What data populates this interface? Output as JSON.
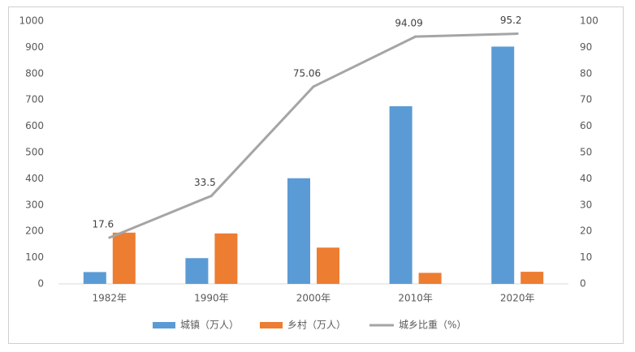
{
  "chart_data": {
    "type": "bar+line",
    "categories": [
      "1982年",
      "1990年",
      "2000年",
      "2010年",
      "2020年"
    ],
    "series": [
      {
        "name": "城镇（万人）",
        "type": "bar",
        "axis": "left",
        "color": "#5b9bd5",
        "values": [
          45,
          98,
          402,
          676,
          903
        ]
      },
      {
        "name": "乡村（万人）",
        "type": "bar",
        "axis": "left",
        "color": "#ed7d31",
        "values": [
          195,
          192,
          138,
          42,
          46
        ]
      },
      {
        "name": "城乡比重（%）",
        "type": "line",
        "axis": "right",
        "color": "#a5a5a5",
        "values": [
          17.6,
          33.5,
          75.06,
          94.09,
          95.2
        ],
        "labels": [
          "17.6",
          "33.5",
          "75.06",
          "94.09",
          "95.2"
        ]
      }
    ],
    "y_left": {
      "min": 0,
      "max": 1000,
      "step": 100,
      "ticks": [
        "0",
        "100",
        "200",
        "300",
        "400",
        "500",
        "600",
        "700",
        "800",
        "900",
        "1000"
      ]
    },
    "y_right": {
      "min": 0,
      "max": 100,
      "step": 10,
      "ticks": [
        "0",
        "10",
        "20",
        "30",
        "40",
        "50",
        "60",
        "70",
        "80",
        "90",
        "100"
      ]
    },
    "grid": false,
    "legend": "bottom"
  }
}
